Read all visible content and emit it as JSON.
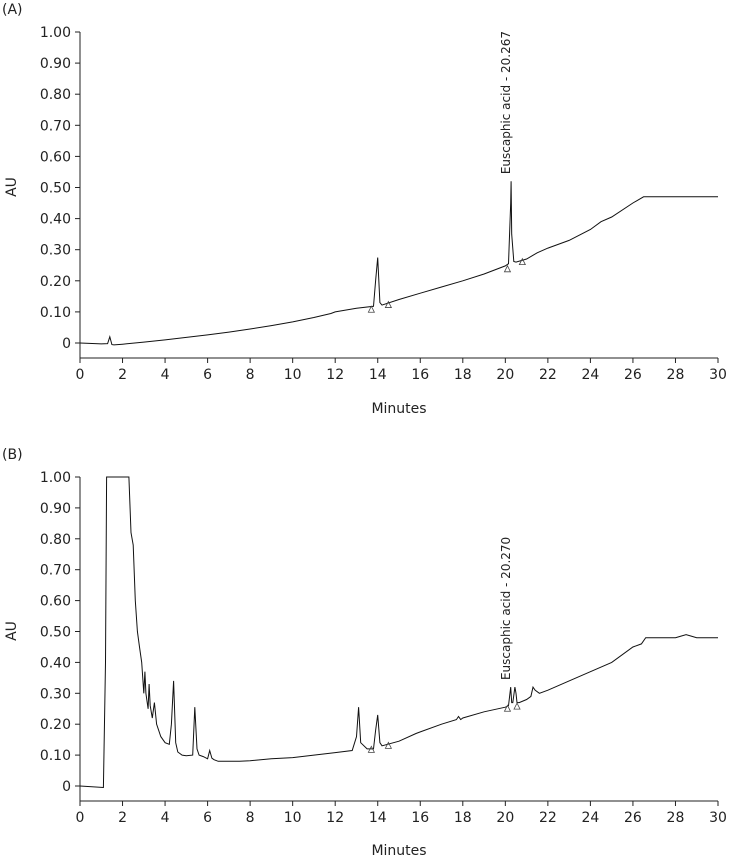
{
  "chart_data": [
    {
      "type": "line",
      "panel_label": "(A)",
      "xlabel": "Minutes",
      "ylabel": "AU",
      "xlim": [
        0,
        30
      ],
      "ylim": [
        0,
        1.0
      ],
      "x_ticks": [
        "0",
        "2",
        "4",
        "6",
        "8",
        "10",
        "12",
        "14",
        "16",
        "18",
        "20",
        "22",
        "24",
        "26",
        "28",
        "30"
      ],
      "y_ticks": [
        "0",
        "0.10",
        "0.20",
        "0.30",
        "0.40",
        "0.50",
        "0.60",
        "0.70",
        "0.80",
        "0.90",
        "1.00"
      ],
      "annotations": [
        {
          "text": "Euscaphic acid - 20.267",
          "x": 20.267,
          "y": 0.53
        }
      ],
      "baseline_markers": [
        {
          "x": 13.7,
          "y": 0.115
        },
        {
          "x": 14.5,
          "y": 0.13
        },
        {
          "x": 20.1,
          "y": 0.245
        },
        {
          "x": 20.8,
          "y": 0.268
        }
      ],
      "series": [
        {
          "x": [
            0,
            1.0,
            1.3,
            1.4,
            1.5,
            1.6,
            2,
            3,
            4,
            5,
            6,
            7,
            8,
            9,
            10,
            11,
            11.8,
            12,
            13,
            13.8,
            13.9,
            14.0,
            14.1,
            14.2,
            15,
            16,
            17,
            18,
            19,
            20,
            20.15,
            20.25,
            20.27,
            20.3,
            20.4,
            20.5,
            21,
            21.5,
            22,
            23,
            24,
            24.5,
            25,
            26,
            26.5,
            27,
            28,
            29,
            30
          ],
          "y": [
            0,
            -0.003,
            -0.002,
            0.02,
            -0.005,
            -0.006,
            -0.004,
            0.003,
            0.01,
            0.018,
            0.026,
            0.035,
            0.045,
            0.056,
            0.068,
            0.082,
            0.095,
            0.1,
            0.112,
            0.118,
            0.2,
            0.275,
            0.13,
            0.122,
            0.14,
            0.16,
            0.18,
            0.2,
            0.222,
            0.248,
            0.255,
            0.45,
            0.52,
            0.35,
            0.262,
            0.26,
            0.27,
            0.29,
            0.305,
            0.33,
            0.365,
            0.39,
            0.405,
            0.45,
            0.47,
            0.47,
            0.47,
            0.47,
            0.47
          ]
        }
      ]
    },
    {
      "type": "line",
      "panel_label": "(B)",
      "xlabel": "Minutes",
      "ylabel": "AU",
      "xlim": [
        0,
        30
      ],
      "ylim": [
        0,
        1.0
      ],
      "x_ticks": [
        "0",
        "2",
        "4",
        "6",
        "8",
        "10",
        "12",
        "14",
        "16",
        "18",
        "20",
        "22",
        "24",
        "26",
        "28",
        "30"
      ],
      "y_ticks": [
        "0",
        "0.10",
        "0.20",
        "0.30",
        "0.40",
        "0.50",
        "0.60",
        "0.70",
        "0.80",
        "0.90",
        "1.00"
      ],
      "annotations": [
        {
          "text": "Euscaphic acid - 20.270",
          "x": 20.27,
          "y": 0.33
        }
      ],
      "baseline_markers": [
        {
          "x": 13.7,
          "y": 0.125
        },
        {
          "x": 14.5,
          "y": 0.138
        },
        {
          "x": 20.1,
          "y": 0.258
        },
        {
          "x": 20.55,
          "y": 0.265
        }
      ],
      "series": [
        {
          "x": [
            0,
            1.1,
            1.2,
            1.25,
            1.3,
            2.2,
            2.3,
            2.4,
            2.5,
            2.6,
            2.7,
            2.8,
            2.9,
            3.0,
            3.05,
            3.1,
            3.2,
            3.25,
            3.3,
            3.4,
            3.5,
            3.6,
            3.8,
            4.0,
            4.2,
            4.3,
            4.4,
            4.5,
            4.6,
            4.8,
            5.0,
            5.3,
            5.4,
            5.5,
            5.6,
            5.8,
            6.0,
            6.1,
            6.2,
            6.3,
            6.5,
            7,
            7.5,
            8,
            9,
            10,
            11,
            12,
            12.8,
            13.0,
            13.1,
            13.2,
            13.5,
            13.8,
            13.9,
            14.0,
            14.1,
            14.2,
            15,
            15.8,
            16,
            17,
            17.7,
            17.8,
            17.9,
            18,
            19,
            20,
            20.15,
            20.25,
            20.3,
            20.35,
            20.45,
            20.5,
            20.55,
            20.65,
            21,
            21.2,
            21.3,
            21.4,
            21.6,
            22,
            23,
            24,
            25,
            26,
            26.4,
            26.6,
            27,
            28,
            28.5,
            29,
            30
          ],
          "y": [
            0,
            -0.005,
            0.4,
            1.0,
            1.0,
            1.0,
            1.0,
            0.82,
            0.78,
            0.6,
            0.5,
            0.45,
            0.4,
            0.3,
            0.37,
            0.3,
            0.25,
            0.33,
            0.26,
            0.22,
            0.27,
            0.2,
            0.16,
            0.14,
            0.135,
            0.2,
            0.34,
            0.14,
            0.11,
            0.1,
            0.098,
            0.1,
            0.255,
            0.12,
            0.1,
            0.095,
            0.088,
            0.115,
            0.09,
            0.085,
            0.08,
            0.08,
            0.08,
            0.082,
            0.088,
            0.092,
            0.1,
            0.108,
            0.115,
            0.16,
            0.255,
            0.14,
            0.12,
            0.12,
            0.18,
            0.23,
            0.14,
            0.13,
            0.145,
            0.17,
            0.175,
            0.2,
            0.215,
            0.225,
            0.215,
            0.22,
            0.24,
            0.255,
            0.26,
            0.32,
            0.27,
            0.27,
            0.32,
            0.3,
            0.27,
            0.27,
            0.28,
            0.29,
            0.32,
            0.31,
            0.3,
            0.31,
            0.34,
            0.37,
            0.4,
            0.45,
            0.46,
            0.48,
            0.48,
            0.48,
            0.49,
            0.48,
            0.48
          ]
        }
      ]
    }
  ]
}
